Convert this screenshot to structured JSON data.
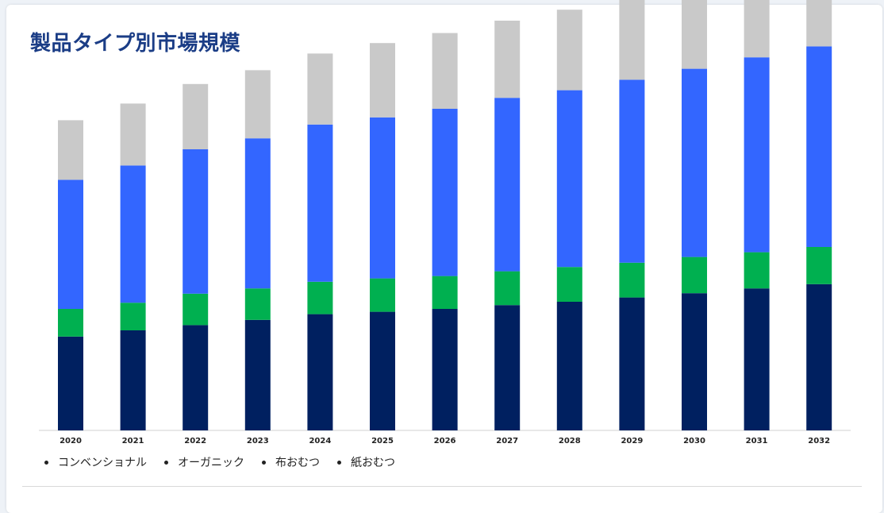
{
  "header": {
    "title": "製品タイプ別市場規模"
  },
  "legend": {
    "items": [
      {
        "label": "コンベンショナル"
      },
      {
        "label": "オーガニック"
      },
      {
        "label": "布おむつ"
      },
      {
        "label": "紙おむつ"
      }
    ]
  },
  "colors": {
    "conventional": "#002060",
    "organic": "#00b050",
    "cloth": "#3366ff",
    "paper": "#c9c9c9"
  },
  "chart_data": {
    "type": "bar",
    "stacked": true,
    "title": "",
    "xlabel": "",
    "ylabel": "",
    "ylim": [
      0,
      100
    ],
    "grid": false,
    "legend_position": "bottom-left",
    "categories": [
      "2020",
      "2021",
      "2022",
      "2023",
      "2024",
      "2025",
      "2026",
      "2027",
      "2028",
      "2029",
      "2030",
      "2031",
      "2032"
    ],
    "series": [
      {
        "name": "コンベンショナル",
        "color": "#002060",
        "values": [
          19.7,
          21.0,
          22.1,
          23.2,
          24.4,
          24.9,
          25.5,
          26.3,
          27.0,
          27.9,
          28.8,
          29.8,
          30.7
        ]
      },
      {
        "name": "オーガニック",
        "color": "#00b050",
        "values": [
          5.8,
          5.8,
          6.6,
          6.6,
          6.8,
          7.0,
          6.9,
          7.1,
          7.3,
          7.3,
          7.6,
          7.6,
          7.8
        ]
      },
      {
        "name": "布おむつ",
        "color": "#3366ff",
        "values": [
          27.1,
          28.8,
          30.3,
          31.5,
          33.0,
          33.8,
          35.1,
          36.4,
          37.1,
          38.4,
          39.5,
          40.9,
          42.1
        ]
      },
      {
        "name": "紙おむつ",
        "color": "#c9c9c9",
        "values": [
          12.5,
          13.0,
          13.7,
          14.3,
          14.9,
          15.6,
          15.9,
          16.2,
          16.9,
          17.3,
          17.8,
          18.2,
          18.8
        ]
      }
    ]
  }
}
